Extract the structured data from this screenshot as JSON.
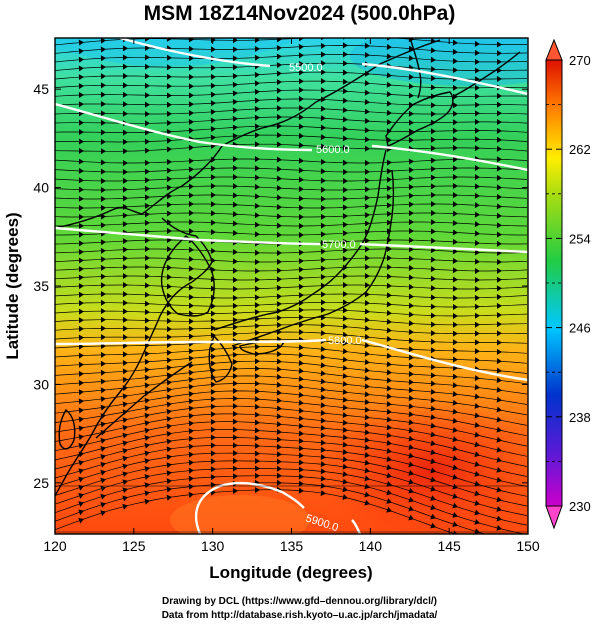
{
  "title": "MSM 18Z14Nov2024 (500.0hPa)",
  "x_axis": {
    "label": "Longitude (degrees)",
    "ticks": [
      "120",
      "125",
      "130",
      "135",
      "140",
      "145",
      "150"
    ],
    "range": [
      120,
      150
    ]
  },
  "y_axis": {
    "label": "Latitude  (degrees)",
    "ticks": [
      "25",
      "30",
      "35",
      "40",
      "45"
    ],
    "range": [
      22.4,
      47.6
    ]
  },
  "colorbar": {
    "ticks": [
      "230",
      "238",
      "246",
      "254",
      "262",
      "270"
    ],
    "range": [
      230,
      270
    ],
    "colors": [
      "#cc00cc",
      "#0033cc",
      "#00d4ff",
      "#22cc22",
      "#ffee00",
      "#ff7700",
      "#dd1100"
    ]
  },
  "contours": [
    {
      "label": "5500.0"
    },
    {
      "label": "5600.0"
    },
    {
      "label": "5700.0"
    },
    {
      "label": "5800.0"
    },
    {
      "label": "5900.0"
    }
  ],
  "footer": {
    "line1": "Drawing by DCL (https://www.gfd–dennou.org/library/dcl/)",
    "line2": "Data from http://database.rish.kyoto–u.ac.jp/arch/jmadata/"
  }
}
